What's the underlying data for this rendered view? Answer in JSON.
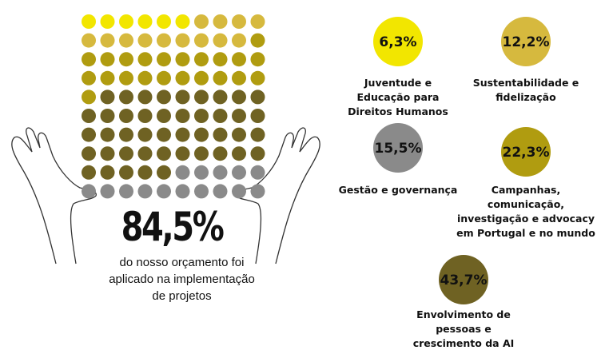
{
  "chart_data": {
    "type": "waffle",
    "headline": "84,5%",
    "caption": "do nosso orçamento foi aplicado na implementação de projetos",
    "series": [
      {
        "name": "Juventude e Educação para Direitos Humanos",
        "color": "#f2e600",
        "values": [
          6.3
        ],
        "value_labels": [
          "6,3%"
        ]
      },
      {
        "name": "Sustentabilidade e fidelização",
        "color": "#d6b93e",
        "values": [
          12.2
        ],
        "value_labels": [
          "12,2%"
        ]
      },
      {
        "name": "Gestão e governança",
        "color": "#8a8a8a",
        "values": [
          15.5
        ],
        "value_labels": [
          "15,5%"
        ]
      },
      {
        "name": "Campanhas, comunicação, investigação e advocacy em Portugal e no mundo",
        "color": "#b09c10",
        "values": [
          22.3
        ],
        "value_labels": [
          "22,3%"
        ]
      },
      {
        "name": "Envolvimento de pessoas e crescimento da AI",
        "color": "#6f6223",
        "values": [
          43.7
        ],
        "value_labels": [
          "43,7%"
        ]
      }
    ]
  }
}
